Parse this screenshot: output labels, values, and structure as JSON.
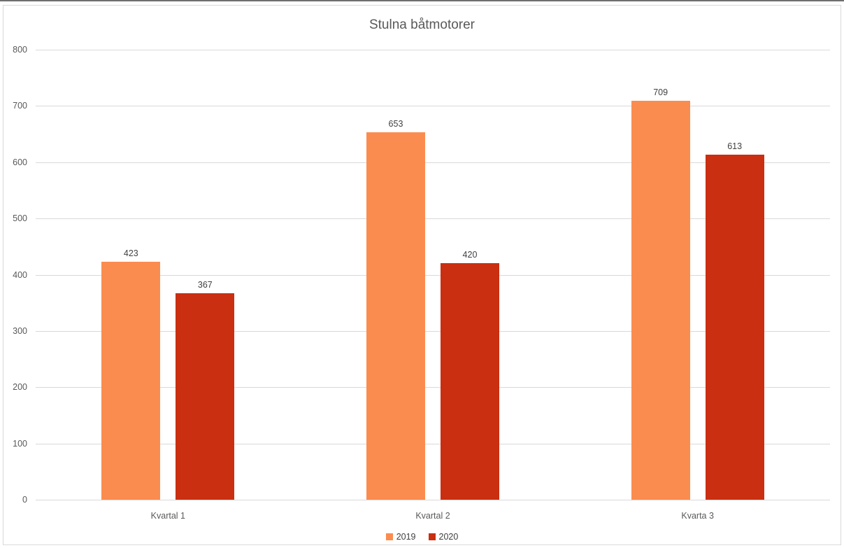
{
  "window": {
    "top_border_color": "#6f6f6f",
    "frame_border_color": "#d9d9d9",
    "background": "#ffffff"
  },
  "chart_data": {
    "type": "bar",
    "title": "Stulna båtmotorer",
    "categories": [
      "Kvartal 1",
      "Kvartal 2",
      "Kvarta 3"
    ],
    "series": [
      {
        "name": "2019",
        "color": "#fb8c4f",
        "values": [
          423,
          653,
          709
        ]
      },
      {
        "name": "2020",
        "color": "#c92f10",
        "values": [
          367,
          420,
          613
        ]
      }
    ],
    "ylim": [
      0,
      800
    ],
    "yticks": [
      0,
      100,
      200,
      300,
      400,
      500,
      600,
      700,
      800
    ],
    "grid": true,
    "data_labels": true,
    "legend_position": "bottom",
    "colors": {
      "title": "#595959",
      "tick_label": "#595959",
      "category_label": "#595959",
      "data_label": "#404040",
      "gridline": "#d9d9d9",
      "axis_line": "#d9d9d9"
    }
  }
}
